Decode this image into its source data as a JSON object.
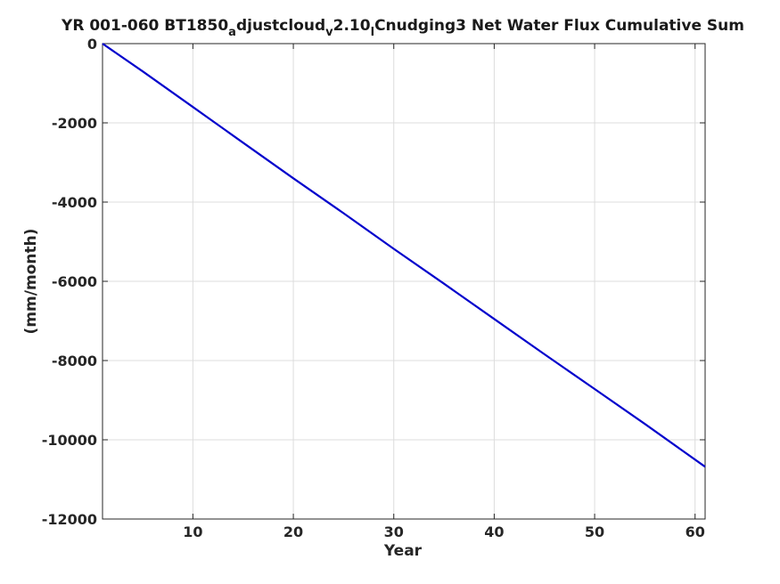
{
  "chart_data": {
    "type": "line",
    "title_parts": [
      {
        "text": "YR 001-060 BT1850",
        "sub": false
      },
      {
        "text": "a",
        "sub": true
      },
      {
        "text": "djustcloud",
        "sub": false
      },
      {
        "text": "v",
        "sub": true
      },
      {
        "text": "2.10",
        "sub": false
      },
      {
        "text": "l",
        "sub": true
      },
      {
        "text": "Cnudging3 Net Water Flux Cumulative Sum",
        "sub": false
      }
    ],
    "xlabel": "Year",
    "ylabel": "(mm/month)",
    "xlim": [
      1,
      61
    ],
    "ylim": [
      -12000,
      0
    ],
    "xticks": [
      10,
      20,
      30,
      40,
      50,
      60
    ],
    "xtick_labels": [
      "10",
      "20",
      "30",
      "40",
      "50",
      "60"
    ],
    "yticks": [
      0,
      -2000,
      -4000,
      -6000,
      -8000,
      -10000,
      -12000
    ],
    "ytick_labels": [
      "0",
      "-2000",
      "-4000",
      "-6000",
      "-8000",
      "-10000",
      "-12000"
    ],
    "grid": true,
    "series": [
      {
        "color": "#0000cc",
        "x": [
          1,
          5,
          10,
          15,
          20,
          25,
          30,
          35,
          40,
          45,
          50,
          55,
          61
        ],
        "y": [
          0,
          -700,
          -1600,
          -2500,
          -3400,
          -4280,
          -5180,
          -6060,
          -6950,
          -7840,
          -8720,
          -9600,
          -10680
        ]
      }
    ]
  }
}
